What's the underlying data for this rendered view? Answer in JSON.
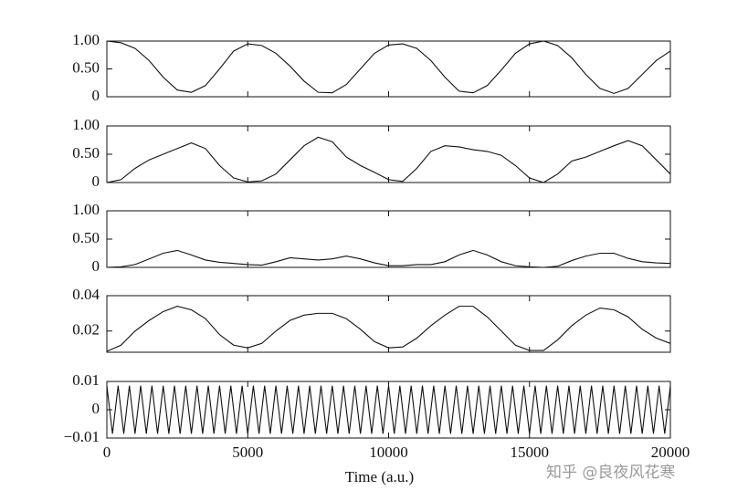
{
  "chart_data": [
    {
      "type": "line",
      "color": "#111111",
      "xlim": [
        0,
        20000
      ],
      "ylim": [
        0,
        1
      ],
      "yticks": [
        0,
        {
          "value": 0.5,
          "label": "0.50"
        },
        {
          "value": 1,
          "label": "1.00"
        }
      ],
      "x": [
        0,
        500,
        1000,
        1500,
        2000,
        2500,
        3000,
        3500,
        4000,
        4500,
        5000,
        5500,
        6000,
        6500,
        7000,
        7500,
        8000,
        8500,
        9000,
        9500,
        10000,
        10500,
        11000,
        11500,
        12000,
        12500,
        13000,
        13500,
        14000,
        14500,
        15000,
        15500,
        16000,
        16500,
        17000,
        17500,
        18000,
        18500,
        19000,
        19500,
        20000
      ],
      "values": [
        1.0,
        0.97,
        0.87,
        0.65,
        0.35,
        0.12,
        0.08,
        0.2,
        0.5,
        0.82,
        0.95,
        0.92,
        0.78,
        0.55,
        0.28,
        0.08,
        0.07,
        0.22,
        0.5,
        0.78,
        0.93,
        0.95,
        0.87,
        0.65,
        0.35,
        0.1,
        0.07,
        0.2,
        0.48,
        0.78,
        0.95,
        1.0,
        0.92,
        0.7,
        0.4,
        0.15,
        0.06,
        0.15,
        0.4,
        0.65,
        0.82
      ]
    },
    {
      "type": "line",
      "color": "#111111",
      "xlim": [
        0,
        20000
      ],
      "ylim": [
        0,
        1
      ],
      "yticks": [
        0,
        {
          "value": 0.5,
          "label": "0.50"
        },
        {
          "value": 1,
          "label": "1.00"
        }
      ],
      "x": [
        0,
        500,
        1000,
        1500,
        2000,
        2500,
        3000,
        3500,
        4000,
        4500,
        5000,
        5500,
        6000,
        6500,
        7000,
        7500,
        8000,
        8500,
        9000,
        9500,
        10000,
        10500,
        11000,
        11500,
        12000,
        12500,
        13000,
        13500,
        14000,
        14500,
        15000,
        15500,
        16000,
        16500,
        17000,
        17500,
        18000,
        18500,
        19000,
        19500,
        20000
      ],
      "values": [
        0.0,
        0.05,
        0.25,
        0.4,
        0.5,
        0.6,
        0.7,
        0.6,
        0.3,
        0.08,
        0.01,
        0.03,
        0.15,
        0.4,
        0.65,
        0.8,
        0.72,
        0.45,
        0.3,
        0.18,
        0.05,
        0.02,
        0.25,
        0.55,
        0.65,
        0.63,
        0.58,
        0.55,
        0.48,
        0.3,
        0.08,
        0.0,
        0.15,
        0.38,
        0.45,
        0.55,
        0.65,
        0.74,
        0.65,
        0.4,
        0.15
      ]
    },
    {
      "type": "line",
      "color": "#111111",
      "xlim": [
        0,
        20000
      ],
      "ylim": [
        0,
        1
      ],
      "yticks": [
        0,
        {
          "value": 0.5,
          "label": "0.50"
        },
        {
          "value": 1,
          "label": "1.00"
        }
      ],
      "x": [
        0,
        500,
        1000,
        1500,
        2000,
        2500,
        3000,
        3500,
        4000,
        4500,
        5000,
        5500,
        6000,
        6500,
        7000,
        7500,
        8000,
        8500,
        9000,
        9500,
        10000,
        10500,
        11000,
        11500,
        12000,
        12500,
        13000,
        13500,
        14000,
        14500,
        15000,
        15500,
        16000,
        16500,
        17000,
        17500,
        18000,
        18500,
        19000,
        19500,
        20000
      ],
      "values": [
        0.0,
        0.01,
        0.05,
        0.15,
        0.25,
        0.3,
        0.22,
        0.13,
        0.09,
        0.07,
        0.05,
        0.04,
        0.1,
        0.17,
        0.15,
        0.13,
        0.15,
        0.2,
        0.15,
        0.08,
        0.03,
        0.03,
        0.05,
        0.05,
        0.1,
        0.22,
        0.3,
        0.22,
        0.1,
        0.03,
        0.01,
        0.0,
        0.02,
        0.12,
        0.2,
        0.25,
        0.25,
        0.16,
        0.1,
        0.08,
        0.07
      ]
    },
    {
      "type": "line",
      "color": "#111111",
      "xlim": [
        0,
        20000
      ],
      "ylim": [
        0.008,
        0.04
      ],
      "yticks": [
        0.02,
        0.04
      ],
      "x": [
        0,
        500,
        1000,
        1500,
        2000,
        2500,
        3000,
        3500,
        4000,
        4500,
        5000,
        5500,
        6000,
        6500,
        7000,
        7500,
        8000,
        8500,
        9000,
        9500,
        10000,
        10500,
        11000,
        11500,
        12000,
        12500,
        13000,
        13500,
        14000,
        14500,
        15000,
        15500,
        16000,
        16500,
        17000,
        17500,
        18000,
        18500,
        19000,
        19500,
        20000
      ],
      "values": [
        0.0085,
        0.012,
        0.02,
        0.026,
        0.031,
        0.034,
        0.032,
        0.027,
        0.018,
        0.012,
        0.0105,
        0.013,
        0.02,
        0.026,
        0.029,
        0.03,
        0.03,
        0.027,
        0.021,
        0.014,
        0.0105,
        0.011,
        0.016,
        0.023,
        0.029,
        0.034,
        0.034,
        0.028,
        0.02,
        0.012,
        0.009,
        0.009,
        0.015,
        0.023,
        0.029,
        0.033,
        0.032,
        0.028,
        0.021,
        0.016,
        0.013
      ]
    },
    {
      "type": "line",
      "color": "#111111",
      "xlim": [
        0,
        20000
      ],
      "ylim": [
        -0.01,
        0.01
      ],
      "yticks": [
        {
          "value": -0.01,
          "label": "−0.01"
        },
        0,
        0.01
      ],
      "xticks": [
        0,
        5000,
        10000,
        15000,
        20000
      ],
      "xlabel": "Time (a.u.)",
      "x": [
        0,
        200,
        400,
        600,
        800,
        1000,
        1200,
        1400,
        1600,
        1800,
        2000,
        2200,
        2400,
        2600,
        2800,
        3000,
        3200,
        3400,
        3600,
        3800,
        4000,
        4200,
        4400,
        4600,
        4800,
        5000,
        5200,
        5400,
        5600,
        5800,
        6000,
        6200,
        6400,
        6600,
        6800,
        7000,
        7200,
        7400,
        7600,
        7800,
        8000,
        8200,
        8400,
        8600,
        8800,
        9000,
        9200,
        9400,
        9600,
        9800,
        10000,
        10200,
        10400,
        10600,
        10800,
        11000,
        11200,
        11400,
        11600,
        11800,
        12000,
        12200,
        12400,
        12600,
        12800,
        13000,
        13200,
        13400,
        13600,
        13800,
        14000,
        14200,
        14400,
        14600,
        14800,
        15000,
        15200,
        15400,
        15600,
        15800,
        16000,
        16200,
        16400,
        16600,
        16800,
        17000,
        17200,
        17400,
        17600,
        17800,
        18000,
        18200,
        18400,
        18600,
        18800,
        19000,
        19200,
        19400,
        19600,
        19800,
        20000
      ],
      "values": [
        0.0085,
        -0.0085,
        0.0085,
        -0.0085,
        0.0085,
        -0.0085,
        0.0085,
        -0.0085,
        0.0085,
        -0.0085,
        0.0085,
        -0.0085,
        0.0085,
        -0.0085,
        0.0085,
        -0.0085,
        0.0085,
        -0.0085,
        0.0085,
        -0.0085,
        0.0085,
        -0.0085,
        0.0085,
        -0.0085,
        0.0085,
        -0.0085,
        0.0085,
        -0.0085,
        0.0085,
        -0.0085,
        0.0085,
        -0.0085,
        0.0085,
        -0.0085,
        0.0085,
        -0.0085,
        0.0085,
        -0.0085,
        0.0085,
        -0.0085,
        0.0085,
        -0.0085,
        0.0085,
        -0.0085,
        0.0085,
        -0.0085,
        0.0085,
        -0.0085,
        0.0085,
        -0.0085,
        0.0085,
        -0.0085,
        0.0085,
        -0.0085,
        0.0085,
        -0.0085,
        0.0085,
        -0.0085,
        0.0085,
        -0.0085,
        0.0085,
        -0.0085,
        0.0085,
        -0.0085,
        0.0085,
        -0.0085,
        0.0085,
        -0.0085,
        0.0085,
        -0.0085,
        0.0085,
        -0.0085,
        0.0085,
        -0.0085,
        0.0085,
        -0.0085,
        0.0085,
        -0.0085,
        0.0085,
        -0.0085,
        0.0085,
        -0.0085,
        0.0085,
        -0.0085,
        0.0085,
        -0.0085,
        0.0085,
        -0.0085,
        0.0085,
        -0.0085,
        0.0085,
        -0.0085,
        0.0085,
        -0.0085,
        0.0085,
        -0.0085,
        0.0085,
        -0.0085,
        0.0085,
        -0.0085,
        0.0085
      ]
    }
  ],
  "watermark": "知乎 @良夜风花寒"
}
